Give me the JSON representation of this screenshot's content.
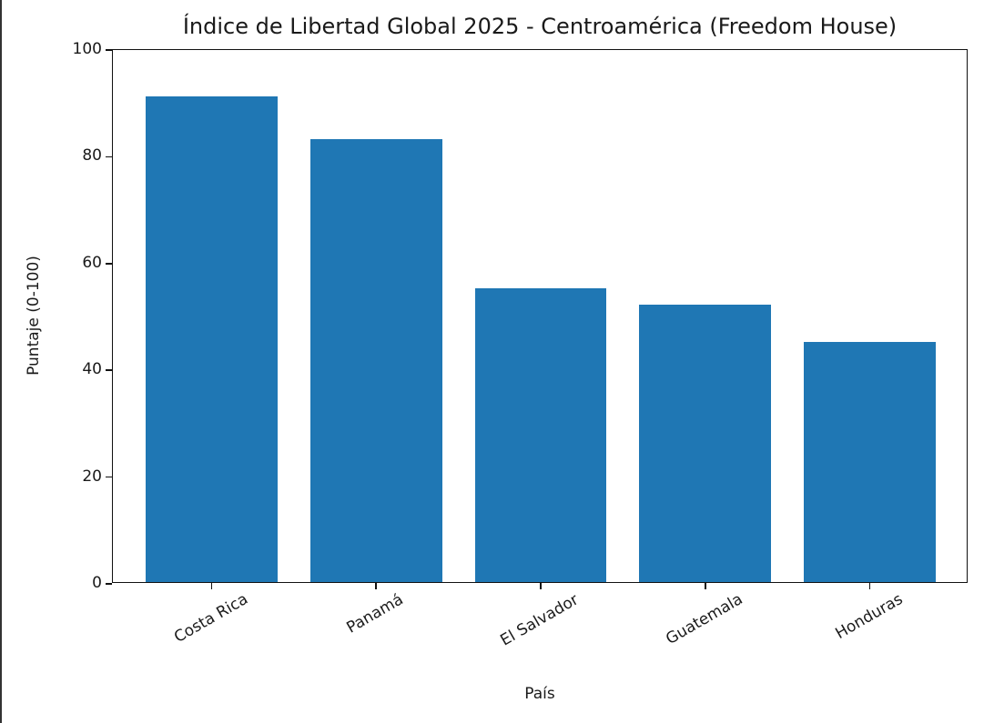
{
  "chart_data": {
    "type": "bar",
    "title": "Índice de Libertad Global 2025 - Centroamérica (Freedom House)",
    "xlabel": "País",
    "ylabel": "Puntaje (0-100)",
    "categories": [
      "Costa Rica",
      "Panamá",
      "El Salvador",
      "Guatemala",
      "Honduras"
    ],
    "values": [
      91,
      83,
      55,
      52,
      45
    ],
    "ylim": [
      0,
      100
    ],
    "yticks": [
      0,
      20,
      40,
      60,
      80,
      100
    ],
    "bar_color": "#1f77b4",
    "grid": false,
    "legend": null,
    "xtick_rotation": 30
  }
}
